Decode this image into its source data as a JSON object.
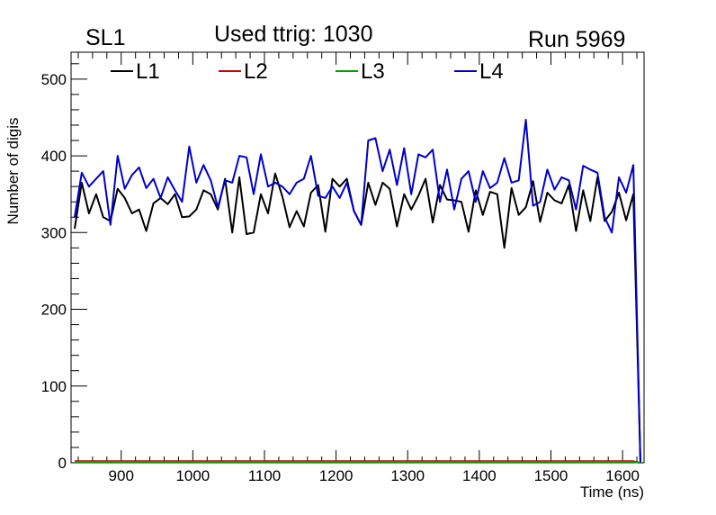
{
  "header": {
    "left": "SL1",
    "title": "Used ttrig: 1030",
    "right": "Run 5969"
  },
  "chart_data": {
    "type": "line",
    "title": "Used ttrig: 1030",
    "xlabel": "Time (ns)",
    "ylabel": "Number of digis",
    "xlim": [
      830,
      1630
    ],
    "ylim": [
      0,
      535
    ],
    "xticks": [
      900,
      1000,
      1100,
      1200,
      1300,
      1400,
      1500,
      1600
    ],
    "yticks": [
      0,
      100,
      200,
      300,
      400,
      500
    ],
    "legend_position": "top",
    "colors": {
      "L1": "#000000",
      "L2": "#cc0000",
      "L3": "#00a000",
      "L4": "#0000cc"
    },
    "x": [
      835,
      845,
      855,
      865,
      875,
      885,
      895,
      905,
      915,
      925,
      935,
      945,
      955,
      965,
      975,
      985,
      995,
      1005,
      1015,
      1025,
      1035,
      1045,
      1055,
      1065,
      1075,
      1085,
      1095,
      1105,
      1115,
      1125,
      1135,
      1145,
      1155,
      1165,
      1175,
      1185,
      1195,
      1205,
      1215,
      1225,
      1235,
      1245,
      1255,
      1265,
      1275,
      1285,
      1295,
      1305,
      1315,
      1325,
      1335,
      1345,
      1355,
      1365,
      1375,
      1385,
      1395,
      1405,
      1415,
      1425,
      1435,
      1445,
      1455,
      1465,
      1475,
      1485,
      1495,
      1505,
      1515,
      1525,
      1535,
      1545,
      1555,
      1565,
      1575,
      1585,
      1595,
      1605,
      1615,
      1625
    ],
    "series": [
      {
        "name": "L1",
        "values": [
          305,
          365,
          325,
          350,
          320,
          315,
          357,
          345,
          325,
          330,
          302,
          338,
          345,
          337,
          350,
          320,
          321,
          330,
          355,
          350,
          330,
          370,
          300,
          372,
          298,
          300,
          350,
          325,
          377,
          347,
          307,
          328,
          308,
          352,
          362,
          301,
          370,
          360,
          370,
          328,
          310,
          365,
          336,
          365,
          357,
          308,
          350,
          330,
          348,
          370,
          313,
          362,
          343,
          342,
          340,
          301,
          355,
          323,
          353,
          350,
          280,
          358,
          323,
          333,
          367,
          314,
          352,
          342,
          338,
          362,
          302,
          355,
          315,
          372,
          315,
          327,
          352,
          316,
          350,
          0
        ]
      },
      {
        "name": "L2",
        "values": [
          2,
          2,
          2,
          2,
          2,
          2,
          2,
          2,
          2,
          2,
          2,
          2,
          2,
          2,
          2,
          2,
          2,
          2,
          2,
          2,
          2,
          2,
          2,
          2,
          2,
          2,
          2,
          2,
          2,
          2,
          2,
          2,
          2,
          2,
          2,
          2,
          2,
          2,
          2,
          2,
          2,
          2,
          2,
          2,
          2,
          2,
          2,
          2,
          2,
          2,
          2,
          2,
          2,
          2,
          2,
          2,
          2,
          2,
          2,
          2,
          2,
          2,
          2,
          2,
          2,
          2,
          2,
          2,
          2,
          2,
          2,
          2,
          2,
          2,
          2,
          2,
          2,
          2,
          2,
          0
        ]
      },
      {
        "name": "L3",
        "values": [
          1,
          1,
          1,
          1,
          1,
          1,
          1,
          1,
          1,
          1,
          1,
          1,
          1,
          1,
          1,
          1,
          1,
          1,
          1,
          1,
          1,
          1,
          1,
          1,
          1,
          1,
          1,
          1,
          1,
          1,
          1,
          1,
          1,
          1,
          1,
          1,
          1,
          1,
          1,
          1,
          1,
          1,
          1,
          1,
          1,
          1,
          1,
          1,
          1,
          1,
          1,
          1,
          1,
          1,
          1,
          1,
          1,
          1,
          1,
          1,
          1,
          1,
          1,
          1,
          1,
          1,
          1,
          1,
          1,
          1,
          1,
          1,
          1,
          1,
          1,
          1,
          1,
          1,
          1,
          0
        ]
      },
      {
        "name": "L4",
        "values": [
          320,
          378,
          360,
          370,
          380,
          310,
          400,
          357,
          375,
          385,
          358,
          370,
          345,
          372,
          355,
          340,
          412,
          365,
          388,
          368,
          333,
          368,
          365,
          400,
          398,
          350,
          402,
          360,
          365,
          360,
          350,
          365,
          370,
          400,
          348,
          345,
          360,
          345,
          365,
          328,
          310,
          420,
          423,
          380,
          408,
          362,
          410,
          350,
          402,
          398,
          408,
          340,
          382,
          330,
          370,
          380,
          340,
          380,
          358,
          365,
          397,
          365,
          368,
          447,
          335,
          340,
          382,
          356,
          372,
          368,
          330,
          387,
          382,
          378,
          320,
          300,
          372,
          352,
          388,
          0
        ]
      }
    ]
  }
}
